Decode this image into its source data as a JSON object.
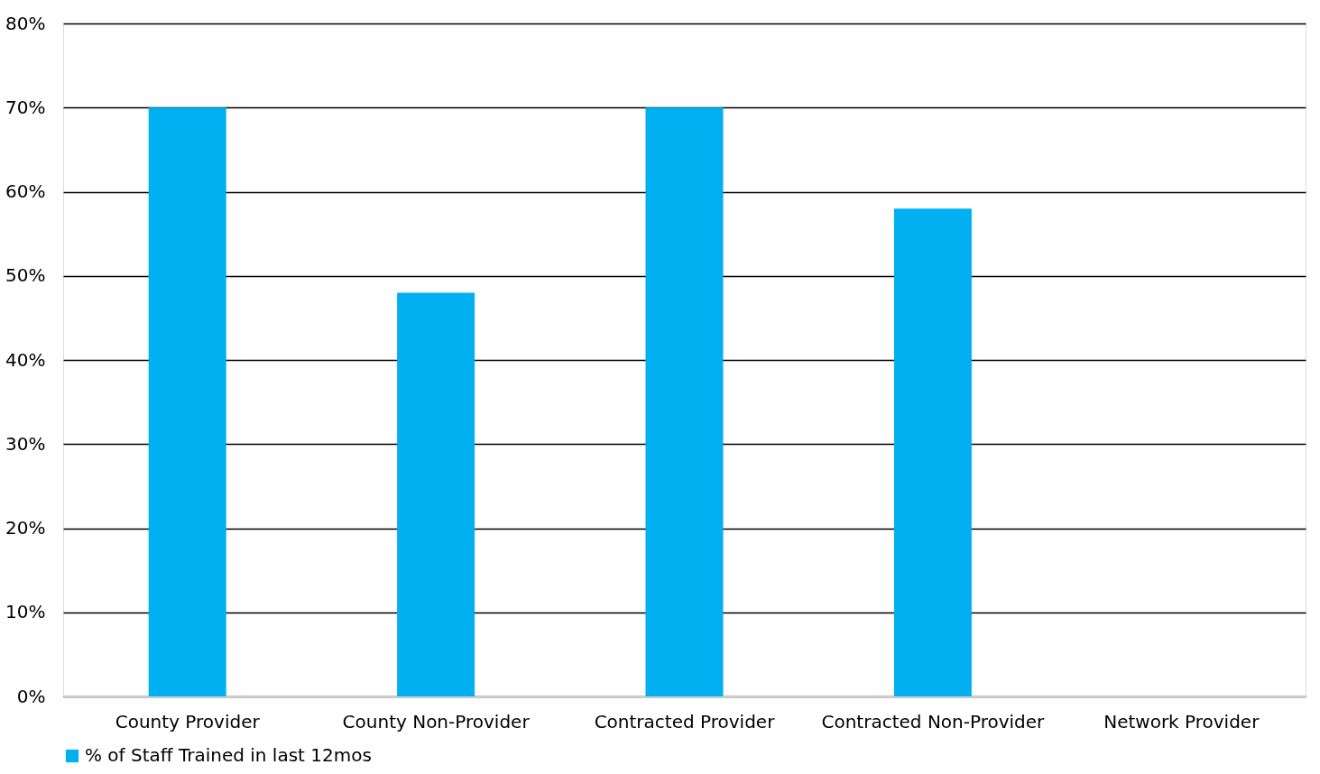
{
  "chart_data": {
    "type": "bar",
    "categories": [
      "County Provider",
      "County Non-Provider",
      "Contracted Provider",
      "Contracted Non-Provider",
      "Network Provider"
    ],
    "series": [
      {
        "name": "% of Staff Trained in last 12mos",
        "color": "#00b0f0",
        "values": [
          70,
          48,
          70,
          58,
          null
        ]
      }
    ],
    "ylim": [
      0,
      80
    ],
    "yticks": [
      {
        "value": 0,
        "label": "0%"
      },
      {
        "value": 10,
        "label": "10%"
      },
      {
        "value": 20,
        "label": "20%"
      },
      {
        "value": 30,
        "label": "30%"
      },
      {
        "value": 40,
        "label": "40%"
      },
      {
        "value": 50,
        "label": "50%"
      },
      {
        "value": 60,
        "label": "60%"
      },
      {
        "value": 70,
        "label": "70%"
      },
      {
        "value": 80,
        "label": "80%"
      }
    ],
    "grid": "y",
    "legend": "bottom"
  }
}
